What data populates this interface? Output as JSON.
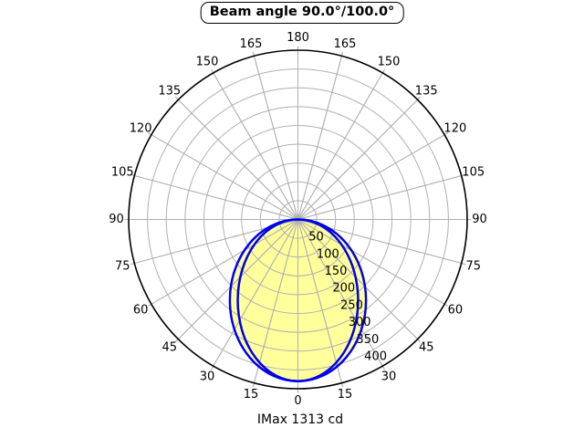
{
  "chart_data": {
    "type": "polar",
    "title": "Beam angle 90.0°/100.0°",
    "annotation": "IMax 1313 cd",
    "imax_cd": 1313,
    "beam_angles_deg": [
      90.0,
      100.0
    ],
    "angle_ticks_deg": [
      0,
      15,
      30,
      45,
      60,
      75,
      90,
      105,
      120,
      135,
      150,
      165,
      180
    ],
    "angle_labels_mirrored": true,
    "r_axis": {
      "ticks": [
        50,
        100,
        150,
        200,
        250,
        300,
        350,
        400
      ],
      "max": 450,
      "label_ray_deg_from_bottom": 25,
      "grid": true
    },
    "legend_position": "none",
    "series": [
      {
        "name": "beam-curve-100",
        "beam_angle_deg": 100.0,
        "peak_r": 430,
        "half_width_r": 181,
        "filled": true
      },
      {
        "name": "beam-curve-90",
        "beam_angle_deg": 90.0,
        "peak_r": 430,
        "half_width_r": 160,
        "filled": false
      }
    ]
  },
  "colors": {
    "background": "#ffffff",
    "grid": "#b0b0b0",
    "outer_ring": "#000000",
    "curve": "#0000ee",
    "fill": "#ffff9c",
    "text": "#000000"
  }
}
